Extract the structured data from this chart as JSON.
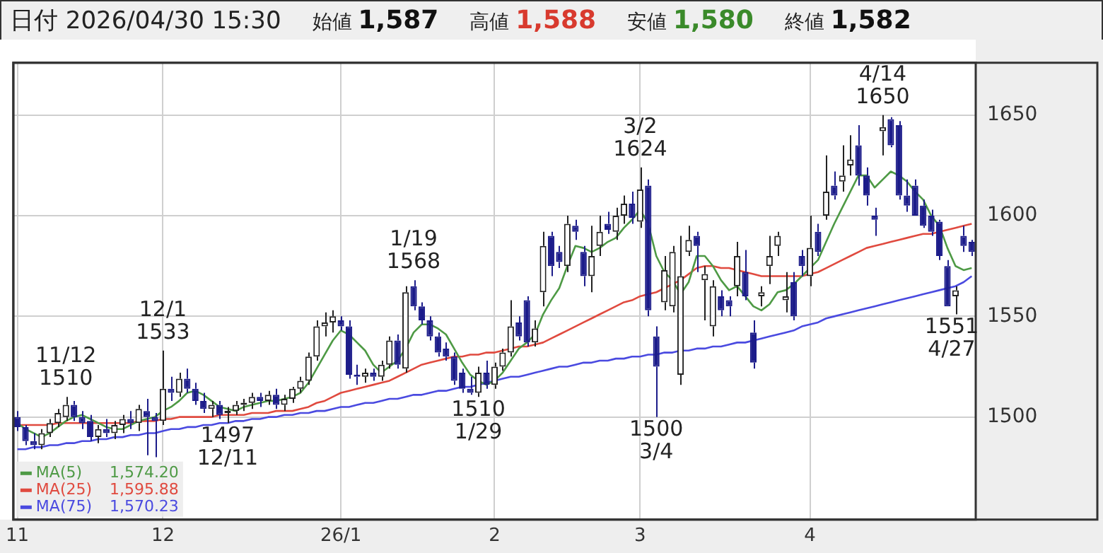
{
  "chart_data": {
    "type": "candlestick",
    "title": "日付 2026/04/30 15:30",
    "annotations": [
      "始値 1,587",
      "高値 1,588",
      "安値 1,580",
      "終値 1,582",
      {
        "text": "11/12 1510",
        "y": 1510
      },
      {
        "text": "12/1 1533",
        "y": 1533
      },
      {
        "text": "1497 12/11",
        "y": 1497
      },
      {
        "text": "1/19 1568",
        "y": 1568
      },
      {
        "text": "1510 1/29",
        "y": 1510
      },
      {
        "text": "3/2 1624",
        "y": 1624
      },
      {
        "text": "1500 3/4",
        "y": 1500
      },
      {
        "text": "4/14 1650",
        "y": 1650
      },
      {
        "text": "1551 4/27",
        "y": 1551
      }
    ],
    "categories": [
      "11",
      null,
      null,
      null,
      null,
      null,
      null,
      null,
      null,
      null,
      null,
      null,
      null,
      null,
      null,
      null,
      null,
      null,
      "12",
      null,
      null,
      null,
      null,
      null,
      null,
      null,
      null,
      null,
      null,
      null,
      null,
      null,
      null,
      null,
      null,
      null,
      null,
      null,
      null,
      null,
      "26/1",
      null,
      null,
      null,
      null,
      null,
      null,
      null,
      null,
      null,
      null,
      null,
      null,
      null,
      null,
      null,
      null,
      null,
      null,
      "2",
      null,
      null,
      null,
      null,
      null,
      null,
      null,
      null,
      null,
      null,
      null,
      null,
      null,
      null,
      null,
      null,
      null,
      "3",
      null,
      null,
      null,
      null,
      null,
      null,
      null,
      null,
      null,
      null,
      null,
      null,
      null,
      null,
      null,
      null,
      null,
      null,
      null,
      null,
      "4",
      null,
      null,
      null,
      null,
      null,
      null,
      null,
      null,
      null,
      null,
      null,
      null,
      null,
      null,
      null,
      null,
      null,
      null,
      null,
      null
    ],
    "ohlc": [
      [
        1500,
        1503,
        1493,
        1495
      ],
      [
        1495,
        1496,
        1486,
        1488
      ],
      [
        1488,
        1492,
        1484,
        1486
      ],
      [
        1486,
        1494,
        1484,
        1492
      ],
      [
        1492,
        1499,
        1490,
        1497
      ],
      [
        1497,
        1504,
        1495,
        1502
      ],
      [
        1500,
        1510,
        1498,
        1506
      ],
      [
        1506,
        1508,
        1498,
        1500
      ],
      [
        1500,
        1503,
        1494,
        1497
      ],
      [
        1498,
        1501,
        1488,
        1490
      ],
      [
        1490,
        1496,
        1487,
        1494
      ],
      [
        1494,
        1499,
        1490,
        1492
      ],
      [
        1492,
        1498,
        1489,
        1496
      ],
      [
        1496,
        1501,
        1492,
        1499
      ],
      [
        1499,
        1503,
        1494,
        1497
      ],
      [
        1497,
        1506,
        1493,
        1504
      ],
      [
        1503,
        1509,
        1481,
        1500
      ],
      [
        1500,
        1502,
        1480,
        1498
      ],
      [
        1498,
        1533,
        1496,
        1514
      ],
      [
        1514,
        1520,
        1508,
        1512
      ],
      [
        1512,
        1522,
        1510,
        1519
      ],
      [
        1519,
        1524,
        1512,
        1514
      ],
      [
        1514,
        1517,
        1506,
        1508
      ],
      [
        1508,
        1512,
        1502,
        1504
      ],
      [
        1504,
        1508,
        1500,
        1506
      ],
      [
        1506,
        1508,
        1499,
        1501
      ],
      [
        1502,
        1505,
        1497,
        1503
      ],
      [
        1503,
        1508,
        1501,
        1506
      ],
      [
        1506,
        1509,
        1503,
        1507
      ],
      [
        1507,
        1512,
        1504,
        1510
      ],
      [
        1510,
        1512,
        1505,
        1508
      ],
      [
        1508,
        1513,
        1506,
        1511
      ],
      [
        1511,
        1514,
        1504,
        1506
      ],
      [
        1506,
        1511,
        1503,
        1509
      ],
      [
        1509,
        1515,
        1507,
        1514
      ],
      [
        1514,
        1520,
        1512,
        1518
      ],
      [
        1518,
        1532,
        1516,
        1530
      ],
      [
        1530,
        1548,
        1528,
        1545
      ],
      [
        1545,
        1552,
        1540,
        1547
      ],
      [
        1547,
        1553,
        1542,
        1550
      ],
      [
        1548,
        1550,
        1543,
        1545
      ],
      [
        1545,
        1548,
        1519,
        1521
      ],
      [
        1521,
        1526,
        1516,
        1520
      ],
      [
        1520,
        1524,
        1517,
        1522
      ],
      [
        1522,
        1524,
        1518,
        1520
      ],
      [
        1520,
        1528,
        1518,
        1526
      ],
      [
        1526,
        1540,
        1524,
        1538
      ],
      [
        1538,
        1541,
        1524,
        1526
      ],
      [
        1524,
        1565,
        1522,
        1562
      ],
      [
        1565,
        1568,
        1553,
        1555
      ],
      [
        1555,
        1557,
        1546,
        1548
      ],
      [
        1548,
        1550,
        1538,
        1540
      ],
      [
        1540,
        1542,
        1530,
        1532
      ],
      [
        1534,
        1537,
        1528,
        1530
      ],
      [
        1530,
        1532,
        1516,
        1518
      ],
      [
        1522,
        1524,
        1512,
        1514
      ],
      [
        1514,
        1520,
        1511,
        1512
      ],
      [
        1512,
        1525,
        1510,
        1522
      ],
      [
        1522,
        1528,
        1514,
        1516
      ],
      [
        1516,
        1527,
        1514,
        1525
      ],
      [
        1525,
        1534,
        1523,
        1532
      ],
      [
        1532,
        1558,
        1530,
        1545
      ],
      [
        1547,
        1550,
        1538,
        1540
      ],
      [
        1558,
        1560,
        1535,
        1537
      ],
      [
        1537,
        1548,
        1535,
        1544
      ],
      [
        1562,
        1592,
        1555,
        1585
      ],
      [
        1590,
        1592,
        1570,
        1575
      ],
      [
        1582,
        1585,
        1574,
        1577
      ],
      [
        1575,
        1600,
        1572,
        1596
      ],
      [
        1595,
        1598,
        1588,
        1592
      ],
      [
        1582,
        1585,
        1565,
        1570
      ],
      [
        1570,
        1595,
        1562,
        1580
      ],
      [
        1585,
        1600,
        1580,
        1592
      ],
      [
        1596,
        1602,
        1591,
        1593
      ],
      [
        1592,
        1604,
        1588,
        1600
      ],
      [
        1600,
        1610,
        1596,
        1606
      ],
      [
        1606,
        1612,
        1596,
        1599
      ],
      [
        1597,
        1624,
        1594,
        1613
      ],
      [
        1615,
        1618,
        1550,
        1553
      ],
      [
        1540,
        1545,
        1500,
        1525
      ],
      [
        1557,
        1580,
        1553,
        1573
      ],
      [
        1555,
        1585,
        1552,
        1582
      ],
      [
        1521,
        1590,
        1516,
        1570
      ],
      [
        1582,
        1595,
        1580,
        1588
      ],
      [
        1590,
        1592,
        1572,
        1585
      ],
      [
        1568,
        1575,
        1548,
        1571
      ],
      [
        1545,
        1568,
        1540,
        1565
      ],
      [
        1560,
        1563,
        1550,
        1553
      ],
      [
        1558,
        1560,
        1550,
        1555
      ],
      [
        1565,
        1587,
        1560,
        1580
      ],
      [
        1572,
        1583,
        1558,
        1560
      ],
      [
        1542,
        1548,
        1524,
        1527
      ],
      [
        1560,
        1565,
        1555,
        1562
      ],
      [
        1575,
        1590,
        1566,
        1580
      ],
      [
        1585,
        1592,
        1580,
        1590
      ],
      [
        1558,
        1572,
        1552,
        1560
      ],
      [
        1567,
        1572,
        1548,
        1550
      ],
      [
        1580,
        1583,
        1570,
        1575
      ],
      [
        1570,
        1600,
        1565,
        1584
      ],
      [
        1592,
        1596,
        1580,
        1582
      ],
      [
        1600,
        1630,
        1598,
        1612
      ],
      [
        1615,
        1622,
        1608,
        1610
      ],
      [
        1617,
        1635,
        1612,
        1620
      ],
      [
        1625,
        1640,
        1620,
        1628
      ],
      [
        1635,
        1645,
        1615,
        1620
      ],
      [
        1620,
        1624,
        1605,
        1610
      ],
      [
        1600,
        1604,
        1590,
        1598
      ],
      [
        1642,
        1650,
        1630,
        1644
      ],
      [
        1648,
        1649,
        1634,
        1635
      ],
      [
        1645,
        1647,
        1608,
        1610
      ],
      [
        1610,
        1618,
        1602,
        1605
      ],
      [
        1615,
        1618,
        1600,
        1600
      ],
      [
        1605,
        1608,
        1594,
        1595
      ],
      [
        1600,
        1603,
        1590,
        1592
      ],
      [
        1597,
        1598,
        1578,
        1580
      ],
      [
        1575,
        1578,
        1555,
        1555
      ],
      [
        1560,
        1565,
        1551,
        1563
      ],
      [
        1590,
        1595,
        1582,
        1585
      ],
      [
        1587,
        1588,
        1580,
        1582
      ]
    ],
    "series": [
      {
        "type": "line",
        "name": "MA(5) 1,574.20",
        "color": "#4e9a45",
        "values": [
          1497,
          1494,
          1492,
          1490,
          1492,
          1495,
          1498,
          1500,
          1501,
          1499,
          1497,
          1495,
          1494,
          1494,
          1496,
          1498,
          1499,
          1500,
          1503,
          1505,
          1508,
          1512,
          1513,
          1511,
          1508,
          1505,
          1504,
          1503,
          1505,
          1506,
          1507,
          1508,
          1508,
          1509,
          1510,
          1512,
          1517,
          1524,
          1531,
          1538,
          1543,
          1541,
          1537,
          1533,
          1526,
          1522,
          1525,
          1528,
          1534,
          1542,
          1546,
          1546,
          1544,
          1541,
          1534,
          1527,
          1521,
          1518,
          1516,
          1518,
          1522,
          1528,
          1534,
          1537,
          1541,
          1551,
          1558,
          1564,
          1575,
          1585,
          1584,
          1582,
          1584,
          1587,
          1589,
          1594,
          1598,
          1603,
          1596,
          1580,
          1572,
          1568,
          1561,
          1567,
          1580,
          1580,
          1575,
          1568,
          1563,
          1565,
          1560,
          1555,
          1553,
          1556,
          1562,
          1563,
          1566,
          1570,
          1574,
          1578,
          1587,
          1596,
          1604,
          1612,
          1620,
          1620,
          1614,
          1618,
          1622,
          1620,
          1617,
          1612,
          1608,
          1600,
          1595,
          1584,
          1575,
          1573,
          1574
        ]
      },
      {
        "type": "line",
        "name": "MA(25) 1,595.88",
        "color": "#e04a3f",
        "values": [
          1496,
          1496,
          1496,
          1496,
          1496,
          1497,
          1497,
          1497,
          1497,
          1497,
          1497,
          1497,
          1497,
          1497,
          1497,
          1498,
          1498,
          1498,
          1499,
          1499,
          1500,
          1500,
          1500,
          1500,
          1500,
          1501,
          1501,
          1501,
          1501,
          1502,
          1502,
          1502,
          1503,
          1503,
          1503,
          1504,
          1505,
          1507,
          1508,
          1510,
          1512,
          1513,
          1514,
          1515,
          1516,
          1517,
          1518,
          1520,
          1522,
          1524,
          1526,
          1527,
          1528,
          1529,
          1530,
          1530,
          1531,
          1531,
          1532,
          1532,
          1533,
          1534,
          1535,
          1535,
          1536,
          1537,
          1539,
          1541,
          1543,
          1545,
          1547,
          1549,
          1551,
          1553,
          1555,
          1557,
          1558,
          1560,
          1561,
          1562,
          1564,
          1566,
          1568,
          1571,
          1574,
          1575,
          1575,
          1574,
          1574,
          1573,
          1572,
          1571,
          1570,
          1570,
          1570,
          1570,
          1570,
          1570,
          1571,
          1572,
          1574,
          1576,
          1578,
          1580,
          1582,
          1584,
          1585,
          1586,
          1587,
          1588,
          1589,
          1590,
          1591,
          1591,
          1592,
          1593,
          1594,
          1595,
          1596
        ]
      },
      {
        "type": "line",
        "name": "MA(75) 1,570.23",
        "color": "#4a4ae0",
        "values": [
          1484,
          1484,
          1485,
          1485,
          1486,
          1486,
          1487,
          1487,
          1488,
          1488,
          1489,
          1489,
          1490,
          1490,
          1491,
          1491,
          1492,
          1492,
          1493,
          1494,
          1494,
          1495,
          1495,
          1496,
          1496,
          1497,
          1497,
          1498,
          1498,
          1499,
          1499,
          1500,
          1500,
          1501,
          1501,
          1502,
          1502,
          1503,
          1503,
          1504,
          1505,
          1505,
          1506,
          1507,
          1507,
          1508,
          1509,
          1509,
          1510,
          1511,
          1511,
          1512,
          1513,
          1513,
          1514,
          1515,
          1515,
          1516,
          1517,
          1518,
          1519,
          1520,
          1520,
          1521,
          1522,
          1523,
          1524,
          1525,
          1525,
          1526,
          1527,
          1527,
          1528,
          1528,
          1529,
          1529,
          1530,
          1530,
          1531,
          1531,
          1532,
          1532,
          1533,
          1533,
          1534,
          1534,
          1535,
          1535,
          1536,
          1537,
          1537,
          1538,
          1539,
          1540,
          1541,
          1542,
          1543,
          1545,
          1546,
          1547,
          1549,
          1550,
          1551,
          1552,
          1553,
          1554,
          1555,
          1556,
          1557,
          1558,
          1559,
          1560,
          1561,
          1562,
          1563,
          1564,
          1565,
          1567,
          1570
        ]
      }
    ],
    "ylim": [
      1449,
      1676
    ],
    "yticks": [
      1500,
      1550,
      1600,
      1650
    ],
    "grid": true,
    "legend": "bottom left",
    "marker": "none"
  }
}
